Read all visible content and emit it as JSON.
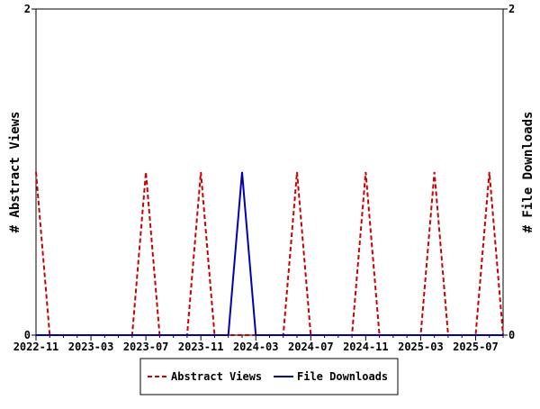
{
  "chart_data": {
    "type": "line",
    "x": [
      "2022-11",
      "2022-12",
      "2023-01",
      "2023-02",
      "2023-03",
      "2023-04",
      "2023-05",
      "2023-06",
      "2023-07",
      "2023-08",
      "2023-09",
      "2023-10",
      "2023-11",
      "2023-12",
      "2024-01",
      "2024-02",
      "2024-03",
      "2024-04",
      "2024-05",
      "2024-06",
      "2024-07",
      "2024-08",
      "2024-09",
      "2024-10",
      "2024-11",
      "2024-12",
      "2025-01",
      "2025-02",
      "2025-03",
      "2025-04",
      "2025-05",
      "2025-06",
      "2025-07",
      "2025-08",
      "2025-09"
    ],
    "xticks": [
      "2022-11",
      "2023-03",
      "2023-07",
      "2023-11",
      "2024-03",
      "2024-07",
      "2024-11",
      "2025-03",
      "2025-07"
    ],
    "series": [
      {
        "name": "Abstract Views",
        "color": "#cc0000",
        "dash": true,
        "axis": "left",
        "values": [
          1,
          0,
          0,
          0,
          0,
          0,
          0,
          0,
          1,
          0,
          0,
          0,
          1,
          0,
          0,
          0,
          0,
          0,
          0,
          1,
          0,
          0,
          0,
          0,
          1,
          0,
          0,
          0,
          0,
          1,
          0,
          0,
          0,
          1,
          0
        ]
      },
      {
        "name": "File Downloads",
        "color": "#0000bb",
        "dash": false,
        "axis": "right",
        "values": [
          0,
          0,
          0,
          0,
          0,
          0,
          0,
          0,
          0,
          0,
          0,
          0,
          0,
          0,
          0,
          1,
          0,
          0,
          0,
          0,
          0,
          0,
          0,
          0,
          0,
          0,
          0,
          0,
          0,
          0,
          0,
          0,
          0,
          0,
          0
        ]
      }
    ],
    "ylabel": "# Abstract Views",
    "y2label": "# File Downloads",
    "ylim": [
      0,
      2
    ],
    "y2lim": [
      0,
      2
    ],
    "yticks": [
      "0",
      "2"
    ],
    "y2ticks": [
      "0",
      "2"
    ],
    "legend_position": "bottom"
  }
}
